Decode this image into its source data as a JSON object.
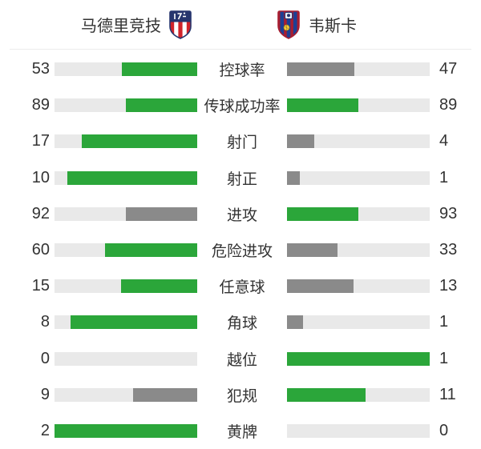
{
  "header": {
    "home": {
      "name": "马德里竞技",
      "crest_icon": "atletico-madrid-crest"
    },
    "away": {
      "name": "韦斯卡",
      "crest_icon": "huesca-crest"
    }
  },
  "stats": [
    {
      "label": "控球率",
      "home": 53,
      "away": 47
    },
    {
      "label": "传球成功率",
      "home": 89,
      "away": 89
    },
    {
      "label": "射门",
      "home": 17,
      "away": 4
    },
    {
      "label": "射正",
      "home": 10,
      "away": 1
    },
    {
      "label": "进攻",
      "home": 92,
      "away": 93
    },
    {
      "label": "危险进攻",
      "home": 60,
      "away": 33
    },
    {
      "label": "任意球",
      "home": 15,
      "away": 13
    },
    {
      "label": "角球",
      "home": 8,
      "away": 1
    },
    {
      "label": "越位",
      "home": 0,
      "away": 1
    },
    {
      "label": "犯规",
      "home": 9,
      "away": 11
    },
    {
      "label": "黄牌",
      "home": 2,
      "away": 0
    }
  ],
  "colors": {
    "win_fill": "#2ba63a",
    "lose_fill": "#8a8a8a",
    "track": "#e9e9e9",
    "text": "#333333",
    "divider": "#ececec"
  },
  "chart_data": {
    "type": "bar",
    "subtype": "paired-horizontal-comparison",
    "title": "",
    "categories": [
      "控球率",
      "传球成功率",
      "射门",
      "射正",
      "进攻",
      "危险进攻",
      "任意球",
      "角球",
      "越位",
      "犯规",
      "黄牌"
    ],
    "series": [
      {
        "name": "马德里竞技",
        "values": [
          53,
          89,
          17,
          10,
          92,
          60,
          15,
          8,
          0,
          9,
          2
        ]
      },
      {
        "name": "韦斯卡",
        "values": [
          47,
          89,
          4,
          1,
          93,
          33,
          13,
          1,
          1,
          11,
          0
        ]
      }
    ],
    "layout": {
      "bar_fill_rule": "width = value / (home + away) of the track",
      "color_rule": "higher value green, lower value gray, tie both green, zero empty track",
      "home_bars_grow": "right-to-left toward center",
      "away_bars_grow": "left-to-right from center",
      "grid": false,
      "legend_position": "top as team header with crests"
    }
  }
}
